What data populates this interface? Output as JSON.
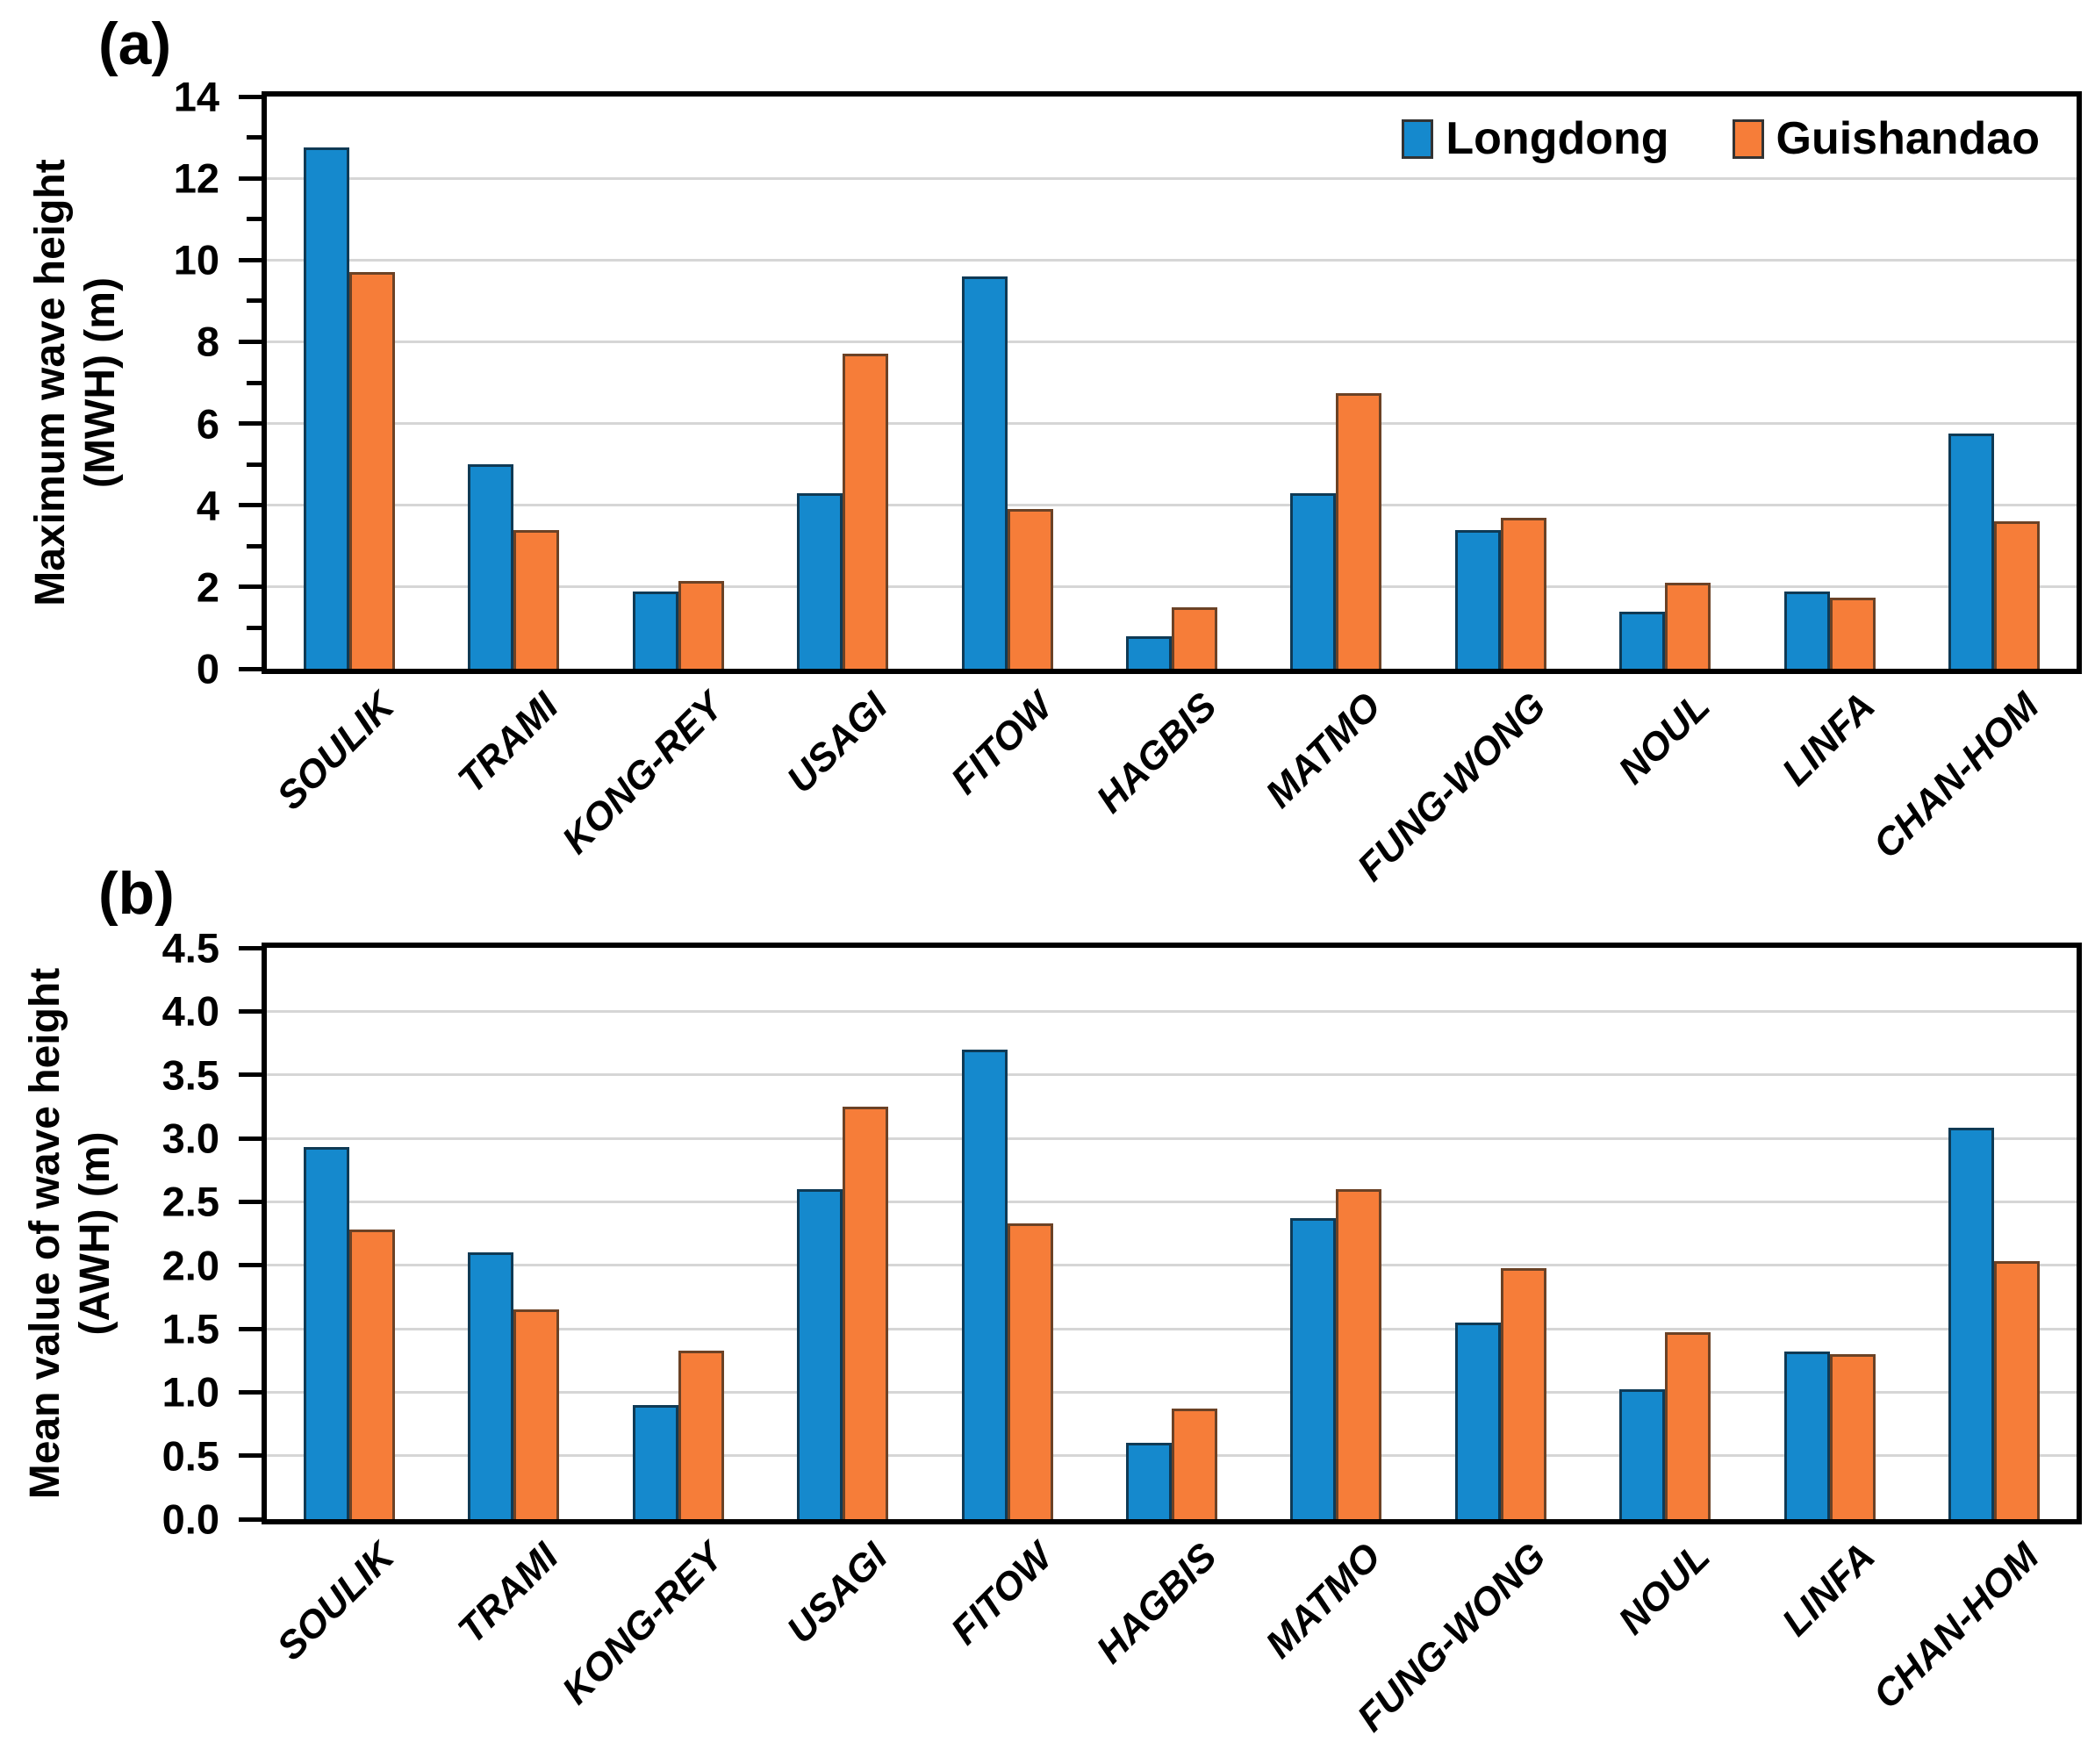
{
  "figure_colors": {
    "longdong_blue": "#1589CD",
    "guishandao_orange": "#F67D39",
    "longdong_border": "#0F3A55",
    "guishandao_border": "#6B4226",
    "gridline_gray": "#D6D6D6",
    "axis_black": "#000000"
  },
  "chart_data": [
    {
      "type": "bar",
      "panel_tag": "(a)",
      "ylabel_lines": [
        "Maximum wave height",
        "(MWH) (m)"
      ],
      "ylim": [
        0,
        14
      ],
      "ytick_label_values": [
        0,
        2,
        4,
        6,
        8,
        10,
        12,
        14
      ],
      "ytick_labels": [
        "0",
        "2",
        "4",
        "6",
        "8",
        "10",
        "12",
        "14"
      ],
      "minor_tick_step": 1,
      "gridline_values": [
        2,
        4,
        6,
        8,
        10,
        12
      ],
      "grid": true,
      "legend_position": "top-right-inside",
      "categories": [
        "SOULIK",
        "TRAMI",
        "KONG-REY",
        "USAGI",
        "FITOW",
        "HAGBIS",
        "MATMO",
        "FUNG-WONG",
        "NOUL",
        "LINFA",
        "CHAN-HOM"
      ],
      "series": [
        {
          "name": "Longdong",
          "color": "#1589CD",
          "border_color": "#0F3A55",
          "values": [
            12.75,
            5.0,
            1.9,
            4.3,
            9.6,
            0.8,
            4.3,
            3.4,
            1.4,
            1.9,
            5.75
          ]
        },
        {
          "name": "Guishandao",
          "color": "#F67D39",
          "border_color": "#6B4226",
          "values": [
            9.7,
            3.4,
            2.15,
            7.7,
            3.9,
            1.5,
            6.75,
            3.7,
            2.1,
            1.75,
            3.6
          ]
        }
      ]
    },
    {
      "type": "bar",
      "panel_tag": "(b)",
      "ylabel_lines": [
        "Mean value of wave height",
        "(AWH) (m)"
      ],
      "ylim": [
        0,
        4.5
      ],
      "ytick_label_values": [
        0,
        0.5,
        1,
        1.5,
        2,
        2.5,
        3,
        3.5,
        4,
        4.5
      ],
      "ytick_labels": [
        "0.0",
        "0.5",
        "1.0",
        "1.5",
        "2.0",
        "2.5",
        "3.0",
        "3.5",
        "4.0",
        "4.5"
      ],
      "minor_tick_step": 0.5,
      "gridline_values": [
        0.5,
        1,
        1.5,
        2,
        2.5,
        3,
        3.5,
        4
      ],
      "grid": true,
      "legend_position": "none",
      "categories": [
        "SOULIK",
        "TRAMI",
        "KONG-REY",
        "USAGI",
        "FITOW",
        "HAGBIS",
        "MATMO",
        "FUNG-WONG",
        "NOUL",
        "LINFA",
        "CHAN-HOM"
      ],
      "series": [
        {
          "name": "Longdong",
          "color": "#1589CD",
          "border_color": "#0F3A55",
          "values": [
            2.93,
            2.1,
            0.9,
            2.6,
            3.7,
            0.6,
            2.37,
            1.55,
            1.02,
            1.32,
            3.08
          ]
        },
        {
          "name": "Guishandao",
          "color": "#F67D39",
          "border_color": "#6B4226",
          "values": [
            2.28,
            1.65,
            1.33,
            3.25,
            2.33,
            0.87,
            2.6,
            1.98,
            1.47,
            1.3,
            2.03
          ]
        }
      ]
    }
  ]
}
